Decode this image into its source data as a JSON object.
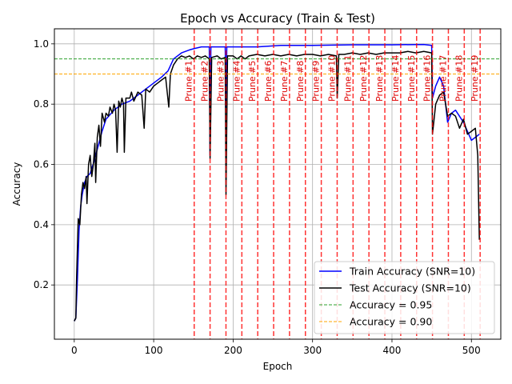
{
  "chart_data": {
    "type": "line",
    "title": "Epoch vs Accuracy (Train & Test)",
    "xlabel": "Epoch",
    "ylabel": "Accuracy",
    "xlim": [
      -25,
      537
    ],
    "ylim": [
      0.02,
      1.05
    ],
    "xticks": [
      0,
      100,
      200,
      300,
      400,
      500
    ],
    "yticks": [
      0.2,
      0.4,
      0.6,
      0.8,
      1.0
    ],
    "xtick_labels": [
      "0",
      "100",
      "200",
      "300",
      "400",
      "500"
    ],
    "ytick_labels": [
      "0.2",
      "0.4",
      "0.6",
      "0.8",
      "1.0"
    ],
    "grid": true,
    "legend_position": "lower-right",
    "series": [
      {
        "name": "Train Accuracy (SNR=10)",
        "color": "#0000ff",
        "points": [
          [
            0,
            0.08
          ],
          [
            2,
            0.09
          ],
          [
            4,
            0.22
          ],
          [
            6,
            0.38
          ],
          [
            8,
            0.46
          ],
          [
            10,
            0.5
          ],
          [
            13,
            0.54
          ],
          [
            16,
            0.56
          ],
          [
            20,
            0.57
          ],
          [
            25,
            0.61
          ],
          [
            30,
            0.66
          ],
          [
            35,
            0.71
          ],
          [
            40,
            0.75
          ],
          [
            50,
            0.78
          ],
          [
            60,
            0.8
          ],
          [
            70,
            0.81
          ],
          [
            80,
            0.83
          ],
          [
            90,
            0.85
          ],
          [
            100,
            0.87
          ],
          [
            110,
            0.89
          ],
          [
            118,
            0.91
          ],
          [
            125,
            0.95
          ],
          [
            135,
            0.97
          ],
          [
            145,
            0.98
          ],
          [
            152,
            0.985
          ],
          [
            160,
            0.99
          ],
          [
            168,
            0.99
          ],
          [
            170,
            0.99
          ],
          [
            171,
            0.63
          ],
          [
            172,
            0.99
          ],
          [
            180,
            0.99
          ],
          [
            189,
            0.99
          ],
          [
            190,
            0.99
          ],
          [
            191,
            0.79
          ],
          [
            192,
            0.99
          ],
          [
            200,
            0.99
          ],
          [
            230,
            0.99
          ],
          [
            260,
            0.995
          ],
          [
            300,
            0.995
          ],
          [
            350,
            0.997
          ],
          [
            400,
            0.997
          ],
          [
            440,
            0.998
          ],
          [
            450,
            0.995
          ],
          [
            451,
            0.82
          ],
          [
            455,
            0.86
          ],
          [
            460,
            0.89
          ],
          [
            465,
            0.86
          ],
          [
            470,
            0.74
          ],
          [
            475,
            0.77
          ],
          [
            480,
            0.78
          ],
          [
            490,
            0.74
          ],
          [
            500,
            0.68
          ],
          [
            505,
            0.69
          ],
          [
            510,
            0.7
          ]
        ]
      },
      {
        "name": "Test Accuracy (SNR=10)",
        "color": "#000000",
        "points": [
          [
            0,
            0.08
          ],
          [
            2,
            0.09
          ],
          [
            3,
            0.23
          ],
          [
            5,
            0.42
          ],
          [
            7,
            0.4
          ],
          [
            9,
            0.5
          ],
          [
            11,
            0.54
          ],
          [
            13,
            0.52
          ],
          [
            15,
            0.56
          ],
          [
            16,
            0.47
          ],
          [
            18,
            0.6
          ],
          [
            20,
            0.63
          ],
          [
            22,
            0.56
          ],
          [
            24,
            0.6
          ],
          [
            26,
            0.67
          ],
          [
            27,
            0.54
          ],
          [
            29,
            0.69
          ],
          [
            31,
            0.73
          ],
          [
            33,
            0.66
          ],
          [
            35,
            0.77
          ],
          [
            38,
            0.74
          ],
          [
            40,
            0.77
          ],
          [
            43,
            0.76
          ],
          [
            45,
            0.79
          ],
          [
            48,
            0.77
          ],
          [
            50,
            0.8
          ],
          [
            52,
            0.78
          ],
          [
            54,
            0.64
          ],
          [
            56,
            0.81
          ],
          [
            58,
            0.79
          ],
          [
            60,
            0.82
          ],
          [
            62,
            0.8
          ],
          [
            63,
            0.64
          ],
          [
            65,
            0.82
          ],
          [
            70,
            0.82
          ],
          [
            72,
            0.84
          ],
          [
            75,
            0.81
          ],
          [
            80,
            0.84
          ],
          [
            85,
            0.83
          ],
          [
            88,
            0.72
          ],
          [
            90,
            0.85
          ],
          [
            95,
            0.84
          ],
          [
            100,
            0.86
          ],
          [
            105,
            0.87
          ],
          [
            110,
            0.88
          ],
          [
            115,
            0.89
          ],
          [
            119,
            0.79
          ],
          [
            121,
            0.9
          ],
          [
            125,
            0.93
          ],
          [
            130,
            0.95
          ],
          [
            135,
            0.96
          ],
          [
            140,
            0.955
          ],
          [
            145,
            0.96
          ],
          [
            150,
            0.95
          ],
          [
            155,
            0.96
          ],
          [
            160,
            0.955
          ],
          [
            165,
            0.96
          ],
          [
            170,
            0.95
          ],
          [
            171,
            0.62
          ],
          [
            173,
            0.955
          ],
          [
            180,
            0.96
          ],
          [
            185,
            0.95
          ],
          [
            190,
            0.955
          ],
          [
            191,
            0.5
          ],
          [
            193,
            0.96
          ],
          [
            200,
            0.96
          ],
          [
            205,
            0.95
          ],
          [
            210,
            0.96
          ],
          [
            215,
            0.95
          ],
          [
            220,
            0.96
          ],
          [
            230,
            0.965
          ],
          [
            240,
            0.96
          ],
          [
            250,
            0.965
          ],
          [
            260,
            0.96
          ],
          [
            270,
            0.965
          ],
          [
            280,
            0.96
          ],
          [
            290,
            0.965
          ],
          [
            300,
            0.965
          ],
          [
            310,
            0.96
          ],
          [
            320,
            0.965
          ],
          [
            330,
            0.96
          ],
          [
            331,
            0.82
          ],
          [
            333,
            0.965
          ],
          [
            340,
            0.965
          ],
          [
            350,
            0.97
          ],
          [
            360,
            0.965
          ],
          [
            370,
            0.97
          ],
          [
            380,
            0.965
          ],
          [
            390,
            0.97
          ],
          [
            400,
            0.97
          ],
          [
            410,
            0.97
          ],
          [
            420,
            0.975
          ],
          [
            430,
            0.97
          ],
          [
            440,
            0.975
          ],
          [
            450,
            0.97
          ],
          [
            451,
            0.7
          ],
          [
            455,
            0.8
          ],
          [
            460,
            0.83
          ],
          [
            465,
            0.84
          ],
          [
            470,
            0.76
          ],
          [
            475,
            0.77
          ],
          [
            480,
            0.76
          ],
          [
            485,
            0.72
          ],
          [
            490,
            0.75
          ],
          [
            495,
            0.7
          ],
          [
            500,
            0.71
          ],
          [
            505,
            0.72
          ],
          [
            508,
            0.63
          ],
          [
            510,
            0.35
          ]
        ]
      }
    ],
    "hlines": [
      {
        "name": "Accuracy = 0.95",
        "y": 0.95,
        "color": "#2ca02c"
      },
      {
        "name": "Accuracy = 0.90",
        "y": 0.9,
        "color": "#ffa500"
      }
    ],
    "vlines": [
      {
        "x": 151,
        "label": "Prune #1"
      },
      {
        "x": 171,
        "label": "Prune #2"
      },
      {
        "x": 191,
        "label": "Prune #3"
      },
      {
        "x": 211,
        "label": "Prune #4"
      },
      {
        "x": 231,
        "label": "Prune #5"
      },
      {
        "x": 251,
        "label": "Prune #6"
      },
      {
        "x": 271,
        "label": "Prune #7"
      },
      {
        "x": 291,
        "label": "Prune #8"
      },
      {
        "x": 311,
        "label": "Prune #9"
      },
      {
        "x": 331,
        "label": "Prune #10"
      },
      {
        "x": 351,
        "label": "Prune #11"
      },
      {
        "x": 371,
        "label": "Prune #12"
      },
      {
        "x": 391,
        "label": "Prune #13"
      },
      {
        "x": 411,
        "label": "Prune #14"
      },
      {
        "x": 431,
        "label": "Prune #15"
      },
      {
        "x": 451,
        "label": "Prune #16"
      },
      {
        "x": 471,
        "label": "Prune #17"
      },
      {
        "x": 491,
        "label": "Prune #18"
      },
      {
        "x": 511,
        "label": "Prune #19"
      }
    ],
    "vline_color": "#ff0000"
  }
}
